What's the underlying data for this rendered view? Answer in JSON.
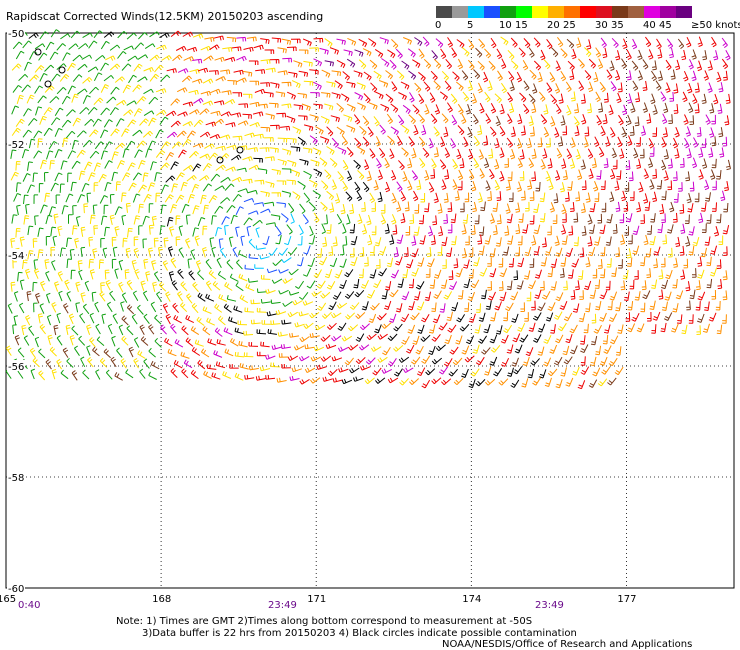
{
  "title": "Rapidscat Corrected Winds(12.5KM) 20150203 ascending",
  "color_scale": {
    "unit_label": "knots",
    "swatches": [
      "#4a4a4a",
      "#9a9a9a",
      "#00c8ff",
      "#1a50ff",
      "#10a010",
      "#00ff00",
      "#ffff00",
      "#ffb000",
      "#ff7000",
      "#ff0000",
      "#dd1020",
      "#7a3a1a",
      "#a06040",
      "#e000e0",
      "#a000a0",
      "#6a0080"
    ],
    "labels": [
      {
        "text": "0",
        "index": 0
      },
      {
        "text": "5",
        "index": 2
      },
      {
        "text": "10",
        "index": 4
      },
      {
        "text": "15",
        "index": 5
      },
      {
        "text": "20",
        "index": 7
      },
      {
        "text": "25",
        "index": 8
      },
      {
        "text": "30",
        "index": 10
      },
      {
        "text": "35",
        "index": 11
      },
      {
        "text": "40",
        "index": 13
      },
      {
        "text": "45",
        "index": 14
      },
      {
        "text": "≥50 knots",
        "index": 16
      }
    ]
  },
  "lat_labels": [
    "-50",
    "-52",
    "-54",
    "-56",
    "-58",
    "-60"
  ],
  "lon_labels": [
    "165",
    "168",
    "171",
    "174",
    "177"
  ],
  "time_labels": [
    "0:40",
    "23:49",
    "23:49"
  ],
  "notes": [
    "Note: 1) Times are GMT 2)Times along bottom correspond to measurement at -50S",
    "3)Data buffer is 22 hrs from 20150203 4) Black circles indicate possible contamination"
  ],
  "credit": "NOAA/NESDIS/Office of Research and Applications",
  "chart_data": {
    "type": "wind-barb map",
    "lat_range": [
      -60,
      -50
    ],
    "lon_range": [
      165,
      179
    ],
    "grid": true,
    "swath_breaks_lon": [
      168,
      174
    ],
    "colors": {
      "black": "#000000",
      "blue": "#1a50ff",
      "cyan": "#00c8ff",
      "green": "#10a010",
      "yellow": "#ffe000",
      "orange": "#ff9000",
      "red": "#ee0000",
      "brown": "#7a3a1a",
      "magenta": "#cc00cc",
      "purple": "#6a0080"
    }
  }
}
